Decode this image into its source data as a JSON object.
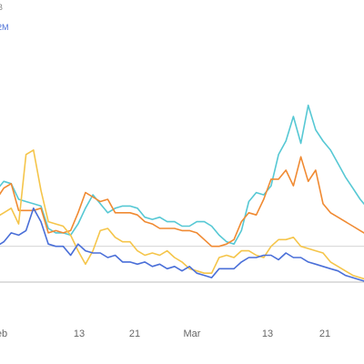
{
  "chart_data": {
    "type": "line",
    "title": "",
    "legend_entries": [
      {
        "label": "B",
        "color": "#888888"
      },
      {
        "label": "2M",
        "color": "#4a6fd8"
      }
    ],
    "x_tick_labels": [
      "eb",
      "13",
      "21",
      "Mar",
      "13",
      "21"
    ],
    "x": [
      0,
      1,
      2,
      3,
      4,
      5,
      6,
      7,
      8,
      9,
      10,
      11,
      12,
      13,
      14,
      15,
      16,
      17,
      18,
      19,
      20,
      21,
      22,
      23,
      24,
      25,
      26,
      27,
      28,
      29,
      30,
      31,
      32,
      33,
      34,
      35,
      36,
      37,
      38,
      39,
      40,
      41,
      42,
      43,
      44,
      45,
      46,
      47,
      48,
      49,
      50
    ],
    "ylim": [
      0,
      100
    ],
    "grid": {
      "horizontal": true,
      "vertical": false
    },
    "reference_lines": [
      29,
      13
    ],
    "series": [
      {
        "color": "#56c8d4",
        "values": [
          54,
          58,
          57,
          50,
          49,
          48,
          47,
          37,
          35,
          35,
          34,
          39,
          46,
          52,
          48,
          44,
          46,
          47,
          47,
          46,
          42,
          41,
          42,
          40,
          40,
          38,
          38,
          40,
          40,
          38,
          34,
          31,
          30,
          36,
          49,
          53,
          52,
          56,
          70,
          76,
          87,
          75,
          92,
          81,
          76,
          72,
          66,
          60,
          55,
          50,
          46
        ]
      },
      {
        "color": "#f08a32",
        "values": [
          50,
          55,
          57,
          45,
          45,
          45,
          46,
          35,
          36,
          35,
          36,
          44,
          53,
          51,
          49,
          50,
          44,
          44,
          44,
          43,
          40,
          39,
          37,
          37,
          37,
          36,
          36,
          35,
          32,
          29,
          29,
          30,
          32,
          40,
          44,
          43,
          50,
          59,
          59,
          63,
          56,
          69,
          58,
          63,
          48,
          44,
          42,
          40,
          38,
          36,
          34
        ]
      },
      {
        "color": "#f5c54a",
        "values": [
          42,
          44,
          46,
          39,
          70,
          72,
          54,
          40,
          39,
          38,
          34,
          27,
          21,
          27,
          36,
          37,
          33,
          31,
          31,
          27,
          25,
          26,
          25,
          27,
          24,
          22,
          19,
          18,
          17,
          17,
          24,
          25,
          24,
          27,
          27,
          25,
          24,
          29,
          32,
          32,
          33,
          29,
          28,
          27,
          26,
          22,
          20,
          18,
          16,
          15,
          14
        ]
      },
      {
        "color": "#4a6fd8",
        "values": [
          29,
          31,
          35,
          34,
          36,
          46,
          40,
          30,
          29,
          29,
          25,
          30,
          27,
          26,
          26,
          24,
          25,
          22,
          22,
          21,
          22,
          20,
          21,
          19,
          20,
          18,
          20,
          17,
          16,
          15,
          19,
          19,
          19,
          22,
          24,
          24,
          25,
          25,
          23,
          26,
          24,
          24,
          22,
          21,
          20,
          19,
          18,
          16,
          15,
          14,
          13
        ]
      }
    ]
  }
}
